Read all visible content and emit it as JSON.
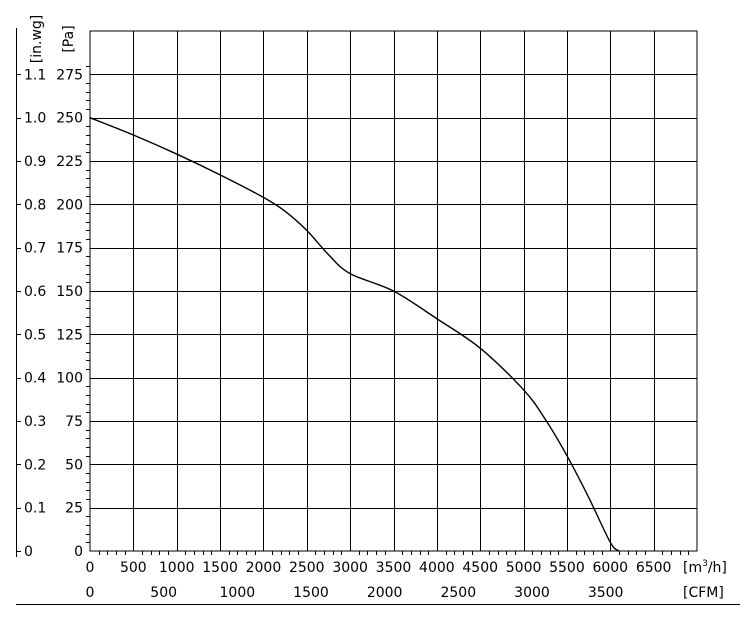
{
  "chart_data": {
    "type": "line",
    "title": "",
    "x_axis_primary": {
      "unit_prefix": "[m",
      "unit_superscript": "3",
      "unit_suffix": "/h]",
      "range": [
        0,
        7000
      ],
      "ticks": [
        0,
        500,
        1000,
        1500,
        2000,
        2500,
        3000,
        3500,
        4000,
        4500,
        5000,
        5500,
        6000,
        6500
      ],
      "tick_labels": [
        "0",
        "500",
        "1000",
        "1500",
        "2000",
        "2500",
        "3000",
        "3500",
        "4000",
        "4500",
        "5000",
        "5500",
        "6000",
        "6500"
      ]
    },
    "x_axis_secondary": {
      "unit": "[CFM]",
      "ticks": [
        0,
        500,
        1000,
        1500,
        2000,
        2500,
        3000,
        3500
      ],
      "tick_labels": [
        "0",
        "500",
        "1000",
        "1500",
        "2000",
        "2500",
        "3000",
        "3500"
      ],
      "m3h_per_cfm": 1.699
    },
    "y_axis_primary": {
      "unit": "[Pa]",
      "range": [
        0,
        300
      ],
      "ticks": [
        0,
        25,
        50,
        75,
        100,
        125,
        150,
        175,
        200,
        225,
        250,
        275
      ],
      "tick_labels": [
        "0",
        "25",
        "50",
        "75",
        "100",
        "125",
        "150",
        "175",
        "200",
        "225",
        "250",
        "275"
      ]
    },
    "y_axis_secondary": {
      "unit": "[in.wg]",
      "tick_labels": [
        "0",
        "0.1",
        "0.2",
        "0.3",
        "0.4",
        "0.5",
        "0.6",
        "0.7",
        "0.8",
        "0.9",
        "1.0",
        "1.1"
      ]
    },
    "grid": true,
    "series": [
      {
        "color": "#000000",
        "points": [
          {
            "x": 0,
            "y": 250
          },
          {
            "x": 500,
            "y": 240
          },
          {
            "x": 1000,
            "y": 229
          },
          {
            "x": 1500,
            "y": 217
          },
          {
            "x": 2000,
            "y": 204
          },
          {
            "x": 2250,
            "y": 196
          },
          {
            "x": 2500,
            "y": 185
          },
          {
            "x": 2750,
            "y": 171
          },
          {
            "x": 3000,
            "y": 160
          },
          {
            "x": 3500,
            "y": 150
          },
          {
            "x": 4000,
            "y": 134
          },
          {
            "x": 4500,
            "y": 117
          },
          {
            "x": 5000,
            "y": 93
          },
          {
            "x": 5250,
            "y": 76
          },
          {
            "x": 5500,
            "y": 55
          },
          {
            "x": 5750,
            "y": 31
          },
          {
            "x": 6000,
            "y": 5
          },
          {
            "x": 6100,
            "y": 0
          }
        ]
      }
    ]
  }
}
